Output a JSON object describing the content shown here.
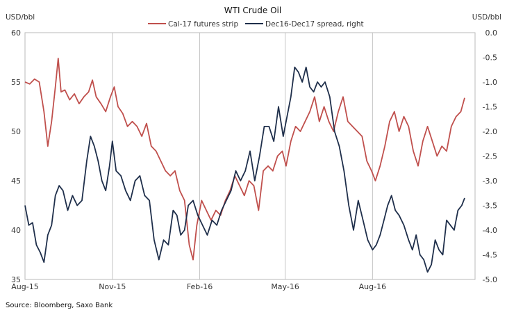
{
  "chart_data": {
    "type": "line",
    "title": "WTI Crude Oil",
    "source": "Source: Bloomberg, Saxo Bank",
    "left_unit": "USD/bbl",
    "right_unit": "USD/bbl",
    "xlim": [
      "2015-08-01",
      "2016-11-17"
    ],
    "x_ticks": [
      "2015-08-01",
      "2015-11-01",
      "2016-02-01",
      "2016-05-01",
      "2016-08-01"
    ],
    "x_tick_labels": [
      "Aug-15",
      "Nov-15",
      "Feb-16",
      "May-16",
      "Aug-16"
    ],
    "ylim_left": [
      35,
      60
    ],
    "y_ticks_left": [
      "35",
      "40",
      "45",
      "50",
      "55",
      "60"
    ],
    "ylim_right": [
      -5.0,
      0.0
    ],
    "y_ticks_right": [
      "-5.0",
      "-4.5",
      "-4.0",
      "-3.5",
      "-3.0",
      "-2.5",
      "-2.0",
      "-1.5",
      "-1.0",
      "-0.5",
      "0.0"
    ],
    "grid": "vertical",
    "legend_position": "top",
    "series": [
      {
        "name": "Cal-17 futures strip",
        "axis": "left",
        "color": "#c0504d",
        "points": [
          [
            "2015-08-01",
            55.0
          ],
          [
            "2015-08-06",
            54.8
          ],
          [
            "2015-08-11",
            55.3
          ],
          [
            "2015-08-16",
            55.0
          ],
          [
            "2015-08-21",
            52.0
          ],
          [
            "2015-08-25",
            48.5
          ],
          [
            "2015-08-29",
            51.0
          ],
          [
            "2015-09-02",
            54.5
          ],
          [
            "2015-09-05",
            57.4
          ],
          [
            "2015-09-08",
            54.0
          ],
          [
            "2015-09-12",
            54.2
          ],
          [
            "2015-09-17",
            53.2
          ],
          [
            "2015-09-22",
            53.8
          ],
          [
            "2015-09-27",
            52.8
          ],
          [
            "2015-10-02",
            53.5
          ],
          [
            "2015-10-07",
            54.0
          ],
          [
            "2015-10-11",
            55.2
          ],
          [
            "2015-10-15",
            53.5
          ],
          [
            "2015-10-20",
            52.8
          ],
          [
            "2015-10-25",
            52.0
          ],
          [
            "2015-10-30",
            53.5
          ],
          [
            "2015-11-03",
            54.5
          ],
          [
            "2015-11-07",
            52.5
          ],
          [
            "2015-11-12",
            51.8
          ],
          [
            "2015-11-17",
            50.5
          ],
          [
            "2015-11-22",
            51.0
          ],
          [
            "2015-11-27",
            50.5
          ],
          [
            "2015-12-02",
            49.5
          ],
          [
            "2015-12-07",
            50.8
          ],
          [
            "2015-12-12",
            48.5
          ],
          [
            "2015-12-17",
            48.0
          ],
          [
            "2015-12-22",
            47.0
          ],
          [
            "2015-12-27",
            46.0
          ],
          [
            "2016-01-01",
            45.5
          ],
          [
            "2016-01-06",
            46.0
          ],
          [
            "2016-01-11",
            44.0
          ],
          [
            "2016-01-16",
            43.0
          ],
          [
            "2016-01-21",
            38.5
          ],
          [
            "2016-01-25",
            37.0
          ],
          [
            "2016-01-29",
            40.5
          ],
          [
            "2016-02-03",
            43.0
          ],
          [
            "2016-02-08",
            42.0
          ],
          [
            "2016-02-13",
            41.0
          ],
          [
            "2016-02-18",
            42.0
          ],
          [
            "2016-02-23",
            41.5
          ],
          [
            "2016-02-28",
            43.0
          ],
          [
            "2016-03-04",
            44.0
          ],
          [
            "2016-03-09",
            45.5
          ],
          [
            "2016-03-14",
            44.5
          ],
          [
            "2016-03-19",
            43.5
          ],
          [
            "2016-03-24",
            45.0
          ],
          [
            "2016-03-29",
            44.5
          ],
          [
            "2016-04-03",
            42.0
          ],
          [
            "2016-04-08",
            46.0
          ],
          [
            "2016-04-13",
            46.5
          ],
          [
            "2016-04-18",
            46.0
          ],
          [
            "2016-04-23",
            47.5
          ],
          [
            "2016-04-28",
            48.0
          ],
          [
            "2016-05-02",
            46.5
          ],
          [
            "2016-05-07",
            49.0
          ],
          [
            "2016-05-12",
            50.5
          ],
          [
            "2016-05-17",
            50.0
          ],
          [
            "2016-05-22",
            51.0
          ],
          [
            "2016-05-27",
            52.0
          ],
          [
            "2016-06-01",
            53.5
          ],
          [
            "2016-06-06",
            51.0
          ],
          [
            "2016-06-11",
            52.5
          ],
          [
            "2016-06-16",
            51.0
          ],
          [
            "2016-06-21",
            50.0
          ],
          [
            "2016-06-26",
            52.0
          ],
          [
            "2016-07-01",
            53.5
          ],
          [
            "2016-07-06",
            51.0
          ],
          [
            "2016-07-11",
            50.5
          ],
          [
            "2016-07-16",
            50.0
          ],
          [
            "2016-07-21",
            49.5
          ],
          [
            "2016-07-26",
            47.0
          ],
          [
            "2016-07-31",
            46.0
          ],
          [
            "2016-08-04",
            45.0
          ],
          [
            "2016-08-09",
            46.5
          ],
          [
            "2016-08-14",
            48.5
          ],
          [
            "2016-08-19",
            51.0
          ],
          [
            "2016-08-24",
            52.0
          ],
          [
            "2016-08-29",
            50.0
          ],
          [
            "2016-09-03",
            51.5
          ],
          [
            "2016-09-08",
            50.5
          ],
          [
            "2016-09-13",
            48.0
          ],
          [
            "2016-09-18",
            46.5
          ],
          [
            "2016-09-23",
            49.0
          ],
          [
            "2016-09-28",
            50.5
          ],
          [
            "2016-10-03",
            49.0
          ],
          [
            "2016-10-08",
            47.5
          ],
          [
            "2016-10-13",
            48.5
          ],
          [
            "2016-10-18",
            48.0
          ],
          [
            "2016-10-23",
            50.5
          ],
          [
            "2016-10-28",
            51.5
          ],
          [
            "2016-11-02",
            52.0
          ],
          [
            "2016-11-06",
            53.4
          ]
        ]
      },
      {
        "name": "Dec16-Dec17 spread, right",
        "axis": "right",
        "color": "#1f2f4b",
        "points": [
          [
            "2015-08-01",
            -3.5
          ],
          [
            "2015-08-05",
            -3.9
          ],
          [
            "2015-08-09",
            -3.85
          ],
          [
            "2015-08-13",
            -4.3
          ],
          [
            "2015-08-17",
            -4.45
          ],
          [
            "2015-08-21",
            -4.65
          ],
          [
            "2015-08-25",
            -4.1
          ],
          [
            "2015-08-29",
            -3.9
          ],
          [
            "2015-09-02",
            -3.3
          ],
          [
            "2015-09-06",
            -3.1
          ],
          [
            "2015-09-10",
            -3.2
          ],
          [
            "2015-09-15",
            -3.6
          ],
          [
            "2015-09-20",
            -3.3
          ],
          [
            "2015-09-25",
            -3.5
          ],
          [
            "2015-09-30",
            -3.4
          ],
          [
            "2015-10-05",
            -2.6
          ],
          [
            "2015-10-09",
            -2.1
          ],
          [
            "2015-10-13",
            -2.3
          ],
          [
            "2015-10-17",
            -2.6
          ],
          [
            "2015-10-21",
            -3.0
          ],
          [
            "2015-10-25",
            -3.2
          ],
          [
            "2015-10-29",
            -2.7
          ],
          [
            "2015-11-01",
            -2.2
          ],
          [
            "2015-11-05",
            -2.8
          ],
          [
            "2015-11-10",
            -2.9
          ],
          [
            "2015-11-15",
            -3.2
          ],
          [
            "2015-11-20",
            -3.4
          ],
          [
            "2015-11-25",
            -3.0
          ],
          [
            "2015-11-30",
            -2.9
          ],
          [
            "2015-12-05",
            -3.3
          ],
          [
            "2015-12-10",
            -3.4
          ],
          [
            "2015-12-15",
            -4.2
          ],
          [
            "2015-12-20",
            -4.6
          ],
          [
            "2015-12-25",
            -4.2
          ],
          [
            "2015-12-30",
            -4.3
          ],
          [
            "2016-01-04",
            -3.6
          ],
          [
            "2016-01-08",
            -3.7
          ],
          [
            "2016-01-12",
            -4.1
          ],
          [
            "2016-01-16",
            -4.0
          ],
          [
            "2016-01-20",
            -3.5
          ],
          [
            "2016-01-25",
            -3.4
          ],
          [
            "2016-01-30",
            -3.7
          ],
          [
            "2016-02-04",
            -3.9
          ],
          [
            "2016-02-09",
            -4.1
          ],
          [
            "2016-02-14",
            -3.8
          ],
          [
            "2016-02-19",
            -3.9
          ],
          [
            "2016-02-24",
            -3.6
          ],
          [
            "2016-02-29",
            -3.4
          ],
          [
            "2016-03-05",
            -3.2
          ],
          [
            "2016-03-10",
            -2.8
          ],
          [
            "2016-03-15",
            -3.0
          ],
          [
            "2016-03-20",
            -2.8
          ],
          [
            "2016-03-25",
            -2.4
          ],
          [
            "2016-03-30",
            -3.0
          ],
          [
            "2016-04-04",
            -2.5
          ],
          [
            "2016-04-09",
            -1.9
          ],
          [
            "2016-04-14",
            -1.9
          ],
          [
            "2016-04-19",
            -2.2
          ],
          [
            "2016-04-24",
            -1.5
          ],
          [
            "2016-04-29",
            -2.1
          ],
          [
            "2016-05-03",
            -1.7
          ],
          [
            "2016-05-07",
            -1.3
          ],
          [
            "2016-05-11",
            -0.7
          ],
          [
            "2016-05-15",
            -0.8
          ],
          [
            "2016-05-19",
            -1.0
          ],
          [
            "2016-05-23",
            -0.7
          ],
          [
            "2016-05-27",
            -1.1
          ],
          [
            "2016-05-31",
            -1.2
          ],
          [
            "2016-06-04",
            -1.0
          ],
          [
            "2016-06-08",
            -1.1
          ],
          [
            "2016-06-12",
            -1.0
          ],
          [
            "2016-06-17",
            -1.3
          ],
          [
            "2016-06-22",
            -2.0
          ],
          [
            "2016-06-27",
            -2.3
          ],
          [
            "2016-07-02",
            -2.8
          ],
          [
            "2016-07-07",
            -3.5
          ],
          [
            "2016-07-12",
            -4.0
          ],
          [
            "2016-07-17",
            -3.4
          ],
          [
            "2016-07-22",
            -3.8
          ],
          [
            "2016-07-27",
            -4.2
          ],
          [
            "2016-08-01",
            -4.4
          ],
          [
            "2016-08-05",
            -4.3
          ],
          [
            "2016-08-09",
            -4.1
          ],
          [
            "2016-08-13",
            -3.8
          ],
          [
            "2016-08-17",
            -3.5
          ],
          [
            "2016-08-21",
            -3.3
          ],
          [
            "2016-08-25",
            -3.6
          ],
          [
            "2016-08-29",
            -3.7
          ],
          [
            "2016-09-03",
            -3.9
          ],
          [
            "2016-09-08",
            -4.2
          ],
          [
            "2016-09-12",
            -4.4
          ],
          [
            "2016-09-16",
            -4.1
          ],
          [
            "2016-09-20",
            -4.5
          ],
          [
            "2016-09-24",
            -4.6
          ],
          [
            "2016-09-28",
            -4.85
          ],
          [
            "2016-10-02",
            -4.7
          ],
          [
            "2016-10-06",
            -4.2
          ],
          [
            "2016-10-10",
            -4.4
          ],
          [
            "2016-10-14",
            -4.5
          ],
          [
            "2016-10-18",
            -3.8
          ],
          [
            "2016-10-22",
            -3.9
          ],
          [
            "2016-10-26",
            -4.0
          ],
          [
            "2016-10-30",
            -3.6
          ],
          [
            "2016-11-03",
            -3.5
          ],
          [
            "2016-11-06",
            -3.35
          ]
        ]
      }
    ]
  }
}
